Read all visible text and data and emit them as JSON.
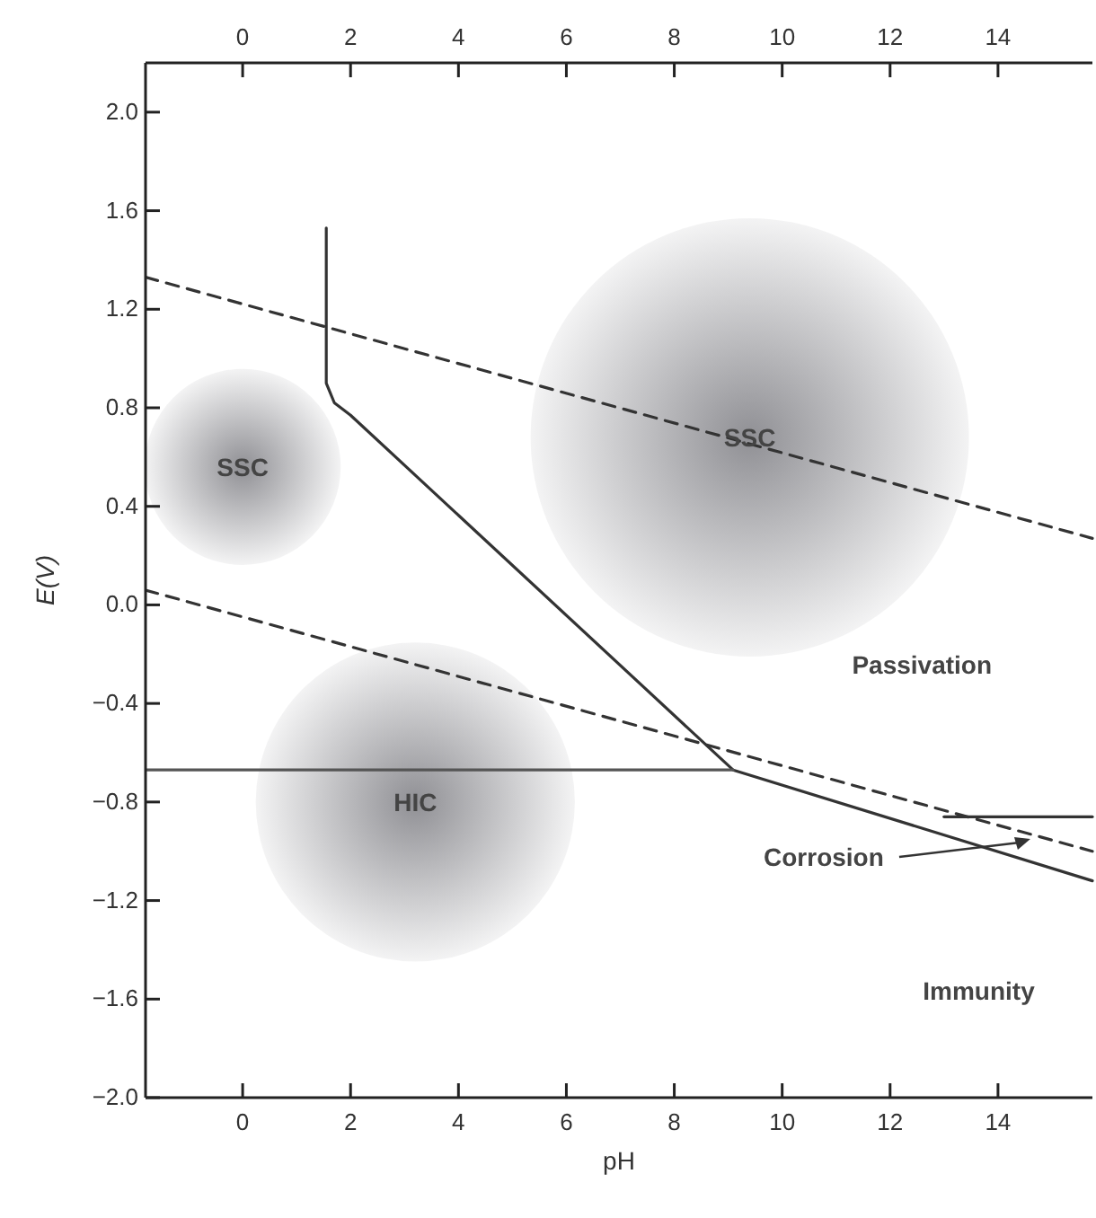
{
  "chart_data": {
    "type": "line",
    "xlabel": "pH",
    "ylabel": "E(V)",
    "xlim": [
      -1.8,
      15.75
    ],
    "xticks": [
      0,
      2,
      4,
      6,
      8,
      10,
      12,
      14
    ],
    "x2lim": [
      -1.8,
      15.75
    ],
    "x2ticks": [
      0,
      2,
      4,
      6,
      8,
      10,
      12,
      14
    ],
    "ylim": [
      -2.0,
      2.2
    ],
    "yticks": [
      {
        "value": 2.0,
        "label": "2.0"
      },
      1.6,
      1.2,
      0.8,
      0.4,
      {
        "value": 0,
        "label": "0.0"
      },
      {
        "value": -0.4,
        "label": "−0.4"
      },
      {
        "value": -0.8,
        "label": "−0.8"
      },
      {
        "value": -1.2,
        "label": "−1.2"
      },
      {
        "value": -1.6,
        "label": "−1.6"
      },
      {
        "value": -2.0,
        "label": "−2.0"
      }
    ],
    "grid": false,
    "series": [
      {
        "color": "#333333",
        "line_style": "solid",
        "x": [
          1.55,
          1.55,
          1.7,
          2.0,
          9.09,
          15.75
        ],
        "values": [
          1.53,
          0.9,
          0.82,
          0.77,
          -0.67,
          -1.12
        ]
      },
      {
        "color": "#555555",
        "line_style": "solid",
        "x": [
          -1.8,
          9.09
        ],
        "values": [
          -0.67,
          -0.67
        ]
      },
      {
        "color": "#333333",
        "line_style": "solid",
        "x": [
          13.0,
          15.75
        ],
        "values": [
          -0.86,
          -0.86
        ]
      },
      {
        "color": "#333333",
        "line_style": "dashed",
        "x": [
          -1.8,
          15.75
        ],
        "values": [
          1.33,
          0.27
        ]
      },
      {
        "color": "#333333",
        "line_style": "dashed",
        "x": [
          -1.8,
          15.75
        ],
        "values": [
          0.06,
          -1.0
        ]
      },
      {
        "type": "bubble",
        "color": "#8a8a8f",
        "x": [
          9.4,
          0.0,
          3.2
        ],
        "values": [
          0.68,
          0.56,
          -0.8
        ],
        "sizes": [
          1,
          0.2,
          0.53
        ]
      }
    ],
    "annotations": [
      {
        "text": "SSC",
        "x": 9.4,
        "y": 0.68
      },
      {
        "text": "SSC",
        "x": 0.0,
        "y": 0.56
      },
      {
        "text": "HIC",
        "x": 3.2,
        "y": -0.8
      },
      "Passivation",
      {
        "text": "Corrosion",
        "x": 14.6,
        "y": -0.95
      },
      "Immunity"
    ]
  }
}
